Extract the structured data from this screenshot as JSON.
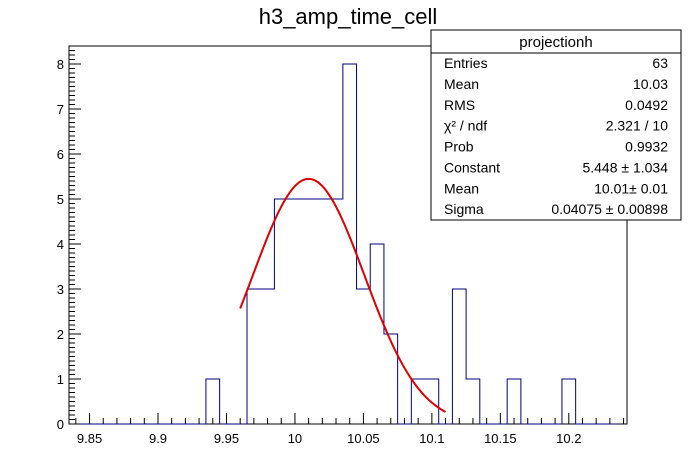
{
  "chart_data": {
    "type": "histogram",
    "title": "h3_amp_time_cell",
    "xlabel": "",
    "ylabel": "",
    "xlim": [
      9.835,
      10.2425
    ],
    "ylim": [
      0,
      8.4
    ],
    "bin_edges": [
      9.835,
      9.845,
      9.855,
      9.865,
      9.875,
      9.885,
      9.895,
      9.905,
      9.915,
      9.925,
      9.935,
      9.945,
      9.955,
      9.965,
      9.975,
      9.985,
      9.995,
      10.005,
      10.015,
      10.025,
      10.035,
      10.045,
      10.055,
      10.065,
      10.075,
      10.085,
      10.095,
      10.105,
      10.115,
      10.125,
      10.135,
      10.145,
      10.155,
      10.165,
      10.175,
      10.185,
      10.195,
      10.205,
      10.215,
      10.225,
      10.235
    ],
    "counts": [
      0,
      0,
      0,
      0,
      0,
      0,
      0,
      0,
      0,
      0,
      1,
      0,
      0,
      3,
      3,
      5,
      5,
      5,
      5,
      5,
      8,
      3,
      4,
      2,
      0,
      1,
      1,
      0,
      3,
      1,
      0,
      0,
      1,
      0,
      0,
      0,
      1,
      0,
      0,
      0
    ],
    "x_ticks": [
      {
        "value": 9.85,
        "label": "9.85"
      },
      {
        "value": 9.9,
        "label": "9.9"
      },
      {
        "value": 9.95,
        "label": "9.95"
      },
      {
        "value": 10.0,
        "label": "10"
      },
      {
        "value": 10.05,
        "label": "10.05"
      },
      {
        "value": 10.1,
        "label": "10.1"
      },
      {
        "value": 10.15,
        "label": "10.15"
      },
      {
        "value": 10.2,
        "label": "10.2"
      }
    ],
    "y_ticks": [
      {
        "value": 0,
        "label": "0"
      },
      {
        "value": 1,
        "label": "1"
      },
      {
        "value": 2,
        "label": "2"
      },
      {
        "value": 3,
        "label": "3"
      },
      {
        "value": 4,
        "label": "4"
      },
      {
        "value": 5,
        "label": "5"
      },
      {
        "value": 6,
        "label": "6"
      },
      {
        "value": 7,
        "label": "7"
      },
      {
        "value": 8,
        "label": "8"
      }
    ],
    "fit": {
      "function": "gaus",
      "constant": 5.448,
      "mean": 10.01,
      "sigma": 0.04075,
      "x_range": [
        9.96,
        10.11
      ]
    },
    "colors": {
      "histogram": "#00007f",
      "fit": "#e00000",
      "axis": "#000000"
    },
    "stats_box": {
      "title": "projectionh",
      "rows": [
        {
          "label": "Entries",
          "value": "63"
        },
        {
          "label": "Mean",
          "value": "10.03"
        },
        {
          "label": "RMS",
          "value": "0.0492"
        },
        {
          "label": "χ² / ndf",
          "value": "2.321 / 10"
        },
        {
          "label": "Prob",
          "value": "0.9932"
        },
        {
          "label": "Constant",
          "value": "5.448 ± 1.034"
        },
        {
          "label": "Mean",
          "value": "10.01± 0.01"
        },
        {
          "label": "Sigma",
          "value": "0.04075 ± 0.00898"
        }
      ]
    }
  }
}
